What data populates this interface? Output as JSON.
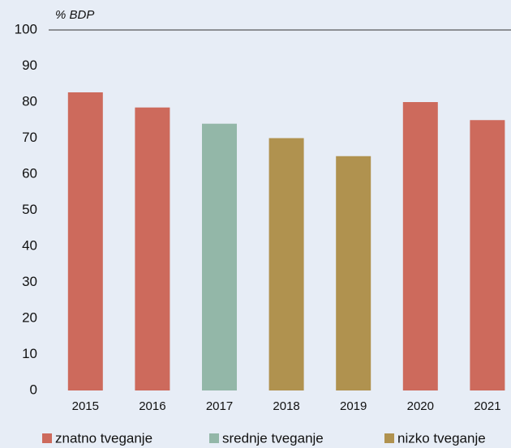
{
  "chart_data": {
    "type": "bar",
    "y_label": "% BDP",
    "categories": [
      "2015",
      "2016",
      "2017",
      "2018",
      "2019",
      "2020",
      "2021"
    ],
    "series": [
      {
        "name": "znatno tveganje",
        "color": "#cd6a5c",
        "values": [
          82.7,
          78.5,
          null,
          null,
          null,
          80,
          75
        ]
      },
      {
        "name": "srednje tveganje",
        "color": "#93b7a8",
        "values": [
          null,
          null,
          74,
          null,
          null,
          null,
          null
        ]
      },
      {
        "name": "nizko tveganje",
        "color": "#b0924f",
        "values": [
          null,
          null,
          null,
          70,
          65,
          null,
          null
        ]
      }
    ],
    "ylim": [
      0,
      100
    ],
    "yticks": [
      0,
      10,
      20,
      30,
      40,
      50,
      60,
      70,
      80,
      90,
      100
    ]
  }
}
